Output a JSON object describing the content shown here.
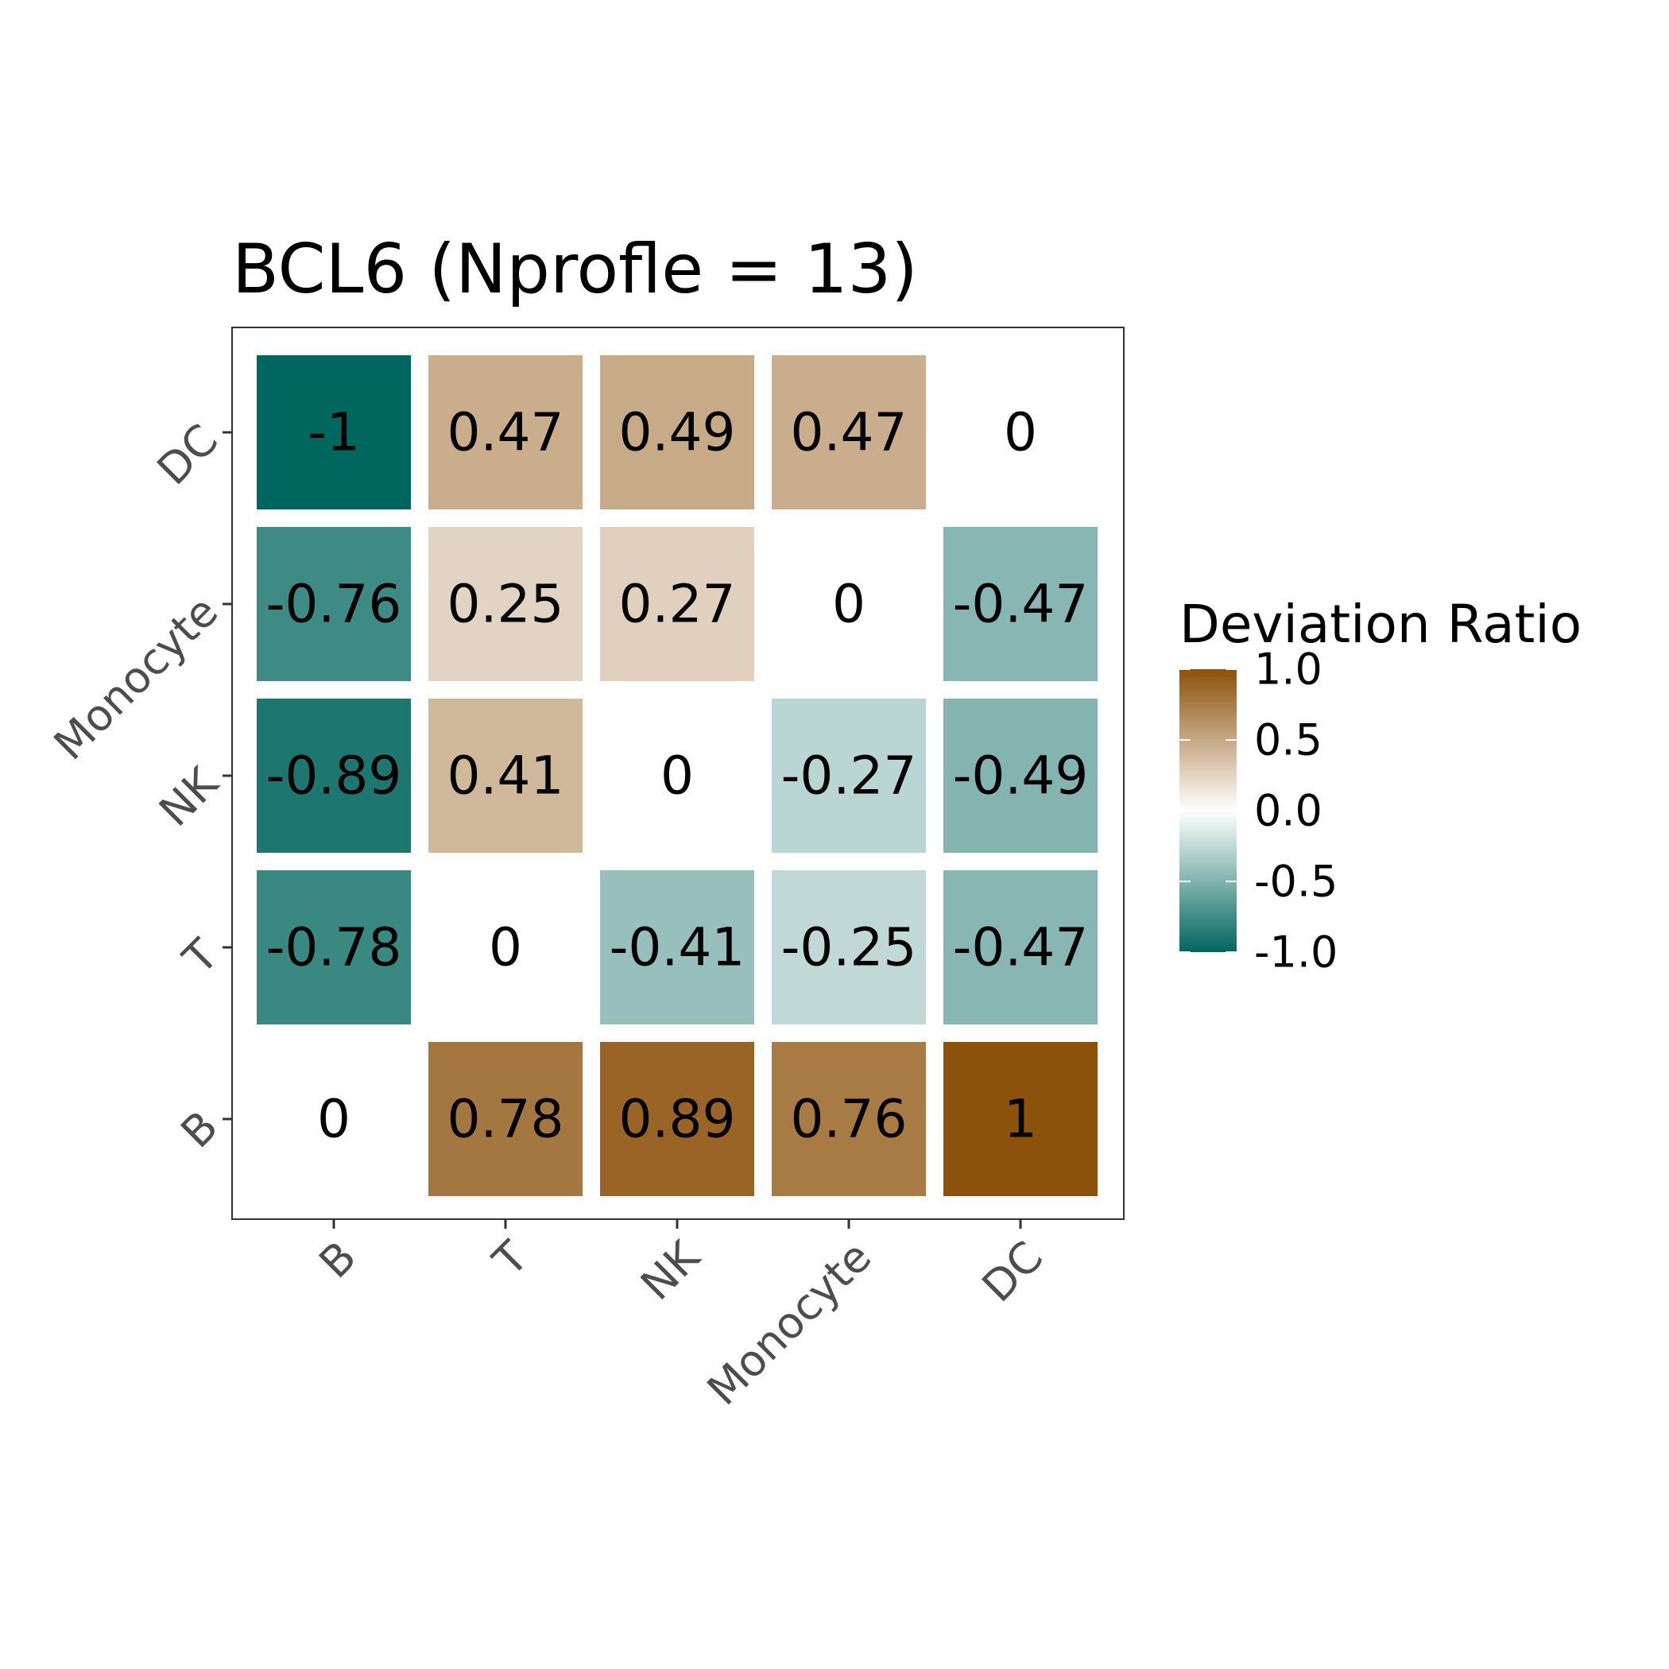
{
  "chart_data": {
    "type": "heatmap",
    "title": "BCL6 (Nprofle = 13)",
    "x_categories": [
      "B",
      "T",
      "NK",
      "Monocyte",
      "DC"
    ],
    "y_categories": [
      "B",
      "T",
      "NK",
      "Monocyte",
      "DC"
    ],
    "cells": [
      {
        "x": "B",
        "y": "DC",
        "value": -1,
        "label": "-1"
      },
      {
        "x": "T",
        "y": "DC",
        "value": 0.47,
        "label": "0.47"
      },
      {
        "x": "NK",
        "y": "DC",
        "value": 0.49,
        "label": "0.49"
      },
      {
        "x": "Monocyte",
        "y": "DC",
        "value": 0.47,
        "label": "0.47"
      },
      {
        "x": "DC",
        "y": "DC",
        "value": 0,
        "label": "0"
      },
      {
        "x": "B",
        "y": "Monocyte",
        "value": -0.76,
        "label": "-0.76"
      },
      {
        "x": "T",
        "y": "Monocyte",
        "value": 0.25,
        "label": "0.25"
      },
      {
        "x": "NK",
        "y": "Monocyte",
        "value": 0.27,
        "label": "0.27"
      },
      {
        "x": "Monocyte",
        "y": "Monocyte",
        "value": 0,
        "label": "0"
      },
      {
        "x": "DC",
        "y": "Monocyte",
        "value": -0.47,
        "label": "-0.47"
      },
      {
        "x": "B",
        "y": "NK",
        "value": -0.89,
        "label": "-0.89"
      },
      {
        "x": "T",
        "y": "NK",
        "value": 0.41,
        "label": "0.41"
      },
      {
        "x": "NK",
        "y": "NK",
        "value": 0,
        "label": "0"
      },
      {
        "x": "Monocyte",
        "y": "NK",
        "value": -0.27,
        "label": "-0.27"
      },
      {
        "x": "DC",
        "y": "NK",
        "value": -0.49,
        "label": "-0.49"
      },
      {
        "x": "B",
        "y": "T",
        "value": -0.78,
        "label": "-0.78"
      },
      {
        "x": "T",
        "y": "T",
        "value": 0,
        "label": "0"
      },
      {
        "x": "NK",
        "y": "T",
        "value": -0.41,
        "label": "-0.41"
      },
      {
        "x": "Monocyte",
        "y": "T",
        "value": -0.25,
        "label": "-0.25"
      },
      {
        "x": "DC",
        "y": "T",
        "value": -0.47,
        "label": "-0.47"
      },
      {
        "x": "B",
        "y": "B",
        "value": 0,
        "label": "0"
      },
      {
        "x": "T",
        "y": "B",
        "value": 0.78,
        "label": "0.78"
      },
      {
        "x": "NK",
        "y": "B",
        "value": 0.89,
        "label": "0.89"
      },
      {
        "x": "Monocyte",
        "y": "B",
        "value": 0.76,
        "label": "0.76"
      },
      {
        "x": "DC",
        "y": "B",
        "value": 1,
        "label": "1"
      }
    ],
    "color_scale": {
      "low": "#01665e",
      "mid": "#ffffff",
      "high": "#8c510a",
      "limits": [
        -1,
        1
      ]
    },
    "legend": {
      "title": "Deviation Ratio",
      "position": "right",
      "ticks": [
        "1.0",
        "0.5",
        "0.0",
        "-0.5",
        "-1.0"
      ],
      "tick_values": [
        1,
        0.5,
        0,
        -0.5,
        -1
      ]
    },
    "grid": false,
    "panel_border": true
  }
}
